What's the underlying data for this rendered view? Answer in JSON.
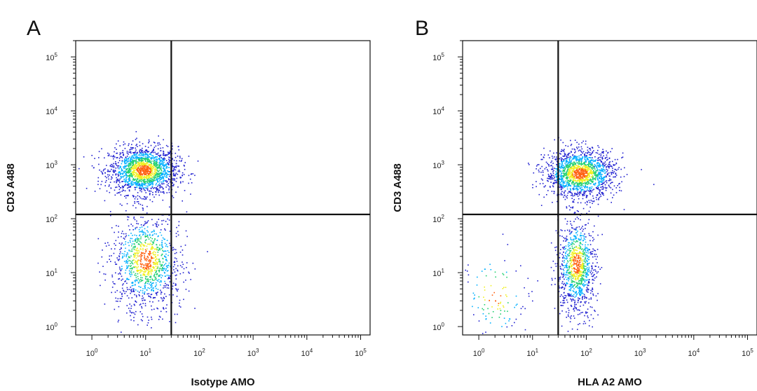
{
  "chart_data": [
    {
      "type": "scatter",
      "panel_label": "A",
      "xlabel": "Isotype AMO",
      "ylabel": "CD3 A488",
      "xscale": "log",
      "yscale": "log",
      "xlim": [
        0.5,
        150000
      ],
      "ylim": [
        0.7,
        200000
      ],
      "x_ticks": [
        {
          "base": "10",
          "exp": "0",
          "value": 1
        },
        {
          "base": "10",
          "exp": "1",
          "value": 10
        },
        {
          "base": "10",
          "exp": "2",
          "value": 100
        },
        {
          "base": "10",
          "exp": "3",
          "value": 1000
        },
        {
          "base": "10",
          "exp": "4",
          "value": 10000
        },
        {
          "base": "10",
          "exp": "5",
          "value": 100000
        }
      ],
      "y_ticks": [
        {
          "base": "10",
          "exp": "0",
          "value": 1
        },
        {
          "base": "10",
          "exp": "1",
          "value": 10
        },
        {
          "base": "10",
          "exp": "2",
          "value": 100
        },
        {
          "base": "10",
          "exp": "3",
          "value": 1000
        },
        {
          "base": "10",
          "exp": "4",
          "value": 10000
        },
        {
          "base": "10",
          "exp": "5",
          "value": 100000
        }
      ],
      "quadrant_gate": {
        "x": 30,
        "y": 120
      },
      "populations": [
        {
          "x": 9,
          "y": 800,
          "count": 1700
        },
        {
          "x": 10,
          "y": 18,
          "count": 1100
        }
      ],
      "density_colors": [
        "#2020d0",
        "#00b0ff",
        "#20d070",
        "#f0f020",
        "#ff6010"
      ]
    },
    {
      "type": "scatter",
      "panel_label": "B",
      "xlabel": "HLA A2 AMO",
      "ylabel": "CD3 A488",
      "xscale": "log",
      "yscale": "log",
      "xlim": [
        0.5,
        150000
      ],
      "ylim": [
        0.7,
        200000
      ],
      "x_ticks": [
        {
          "base": "10",
          "exp": "0",
          "value": 1
        },
        {
          "base": "10",
          "exp": "1",
          "value": 10
        },
        {
          "base": "10",
          "exp": "2",
          "value": 100
        },
        {
          "base": "10",
          "exp": "3",
          "value": 1000
        },
        {
          "base": "10",
          "exp": "4",
          "value": 10000
        },
        {
          "base": "10",
          "exp": "5",
          "value": 100000
        }
      ],
      "y_ticks": [
        {
          "base": "10",
          "exp": "0",
          "value": 1
        },
        {
          "base": "10",
          "exp": "1",
          "value": 10
        },
        {
          "base": "10",
          "exp": "2",
          "value": 100
        },
        {
          "base": "10",
          "exp": "3",
          "value": 1000
        },
        {
          "base": "10",
          "exp": "4",
          "value": 10000
        },
        {
          "base": "10",
          "exp": "5",
          "value": 100000
        }
      ],
      "quadrant_gate": {
        "x": 30,
        "y": 120
      },
      "populations": [
        {
          "x": 75,
          "y": 700,
          "count": 1600
        },
        {
          "x": 65,
          "y": 15,
          "count": 1000
        },
        {
          "x": 2,
          "y": 4,
          "count": 120
        }
      ],
      "density_colors": [
        "#2020d0",
        "#00b0ff",
        "#20d070",
        "#f0f020",
        "#ff6010"
      ]
    }
  ]
}
